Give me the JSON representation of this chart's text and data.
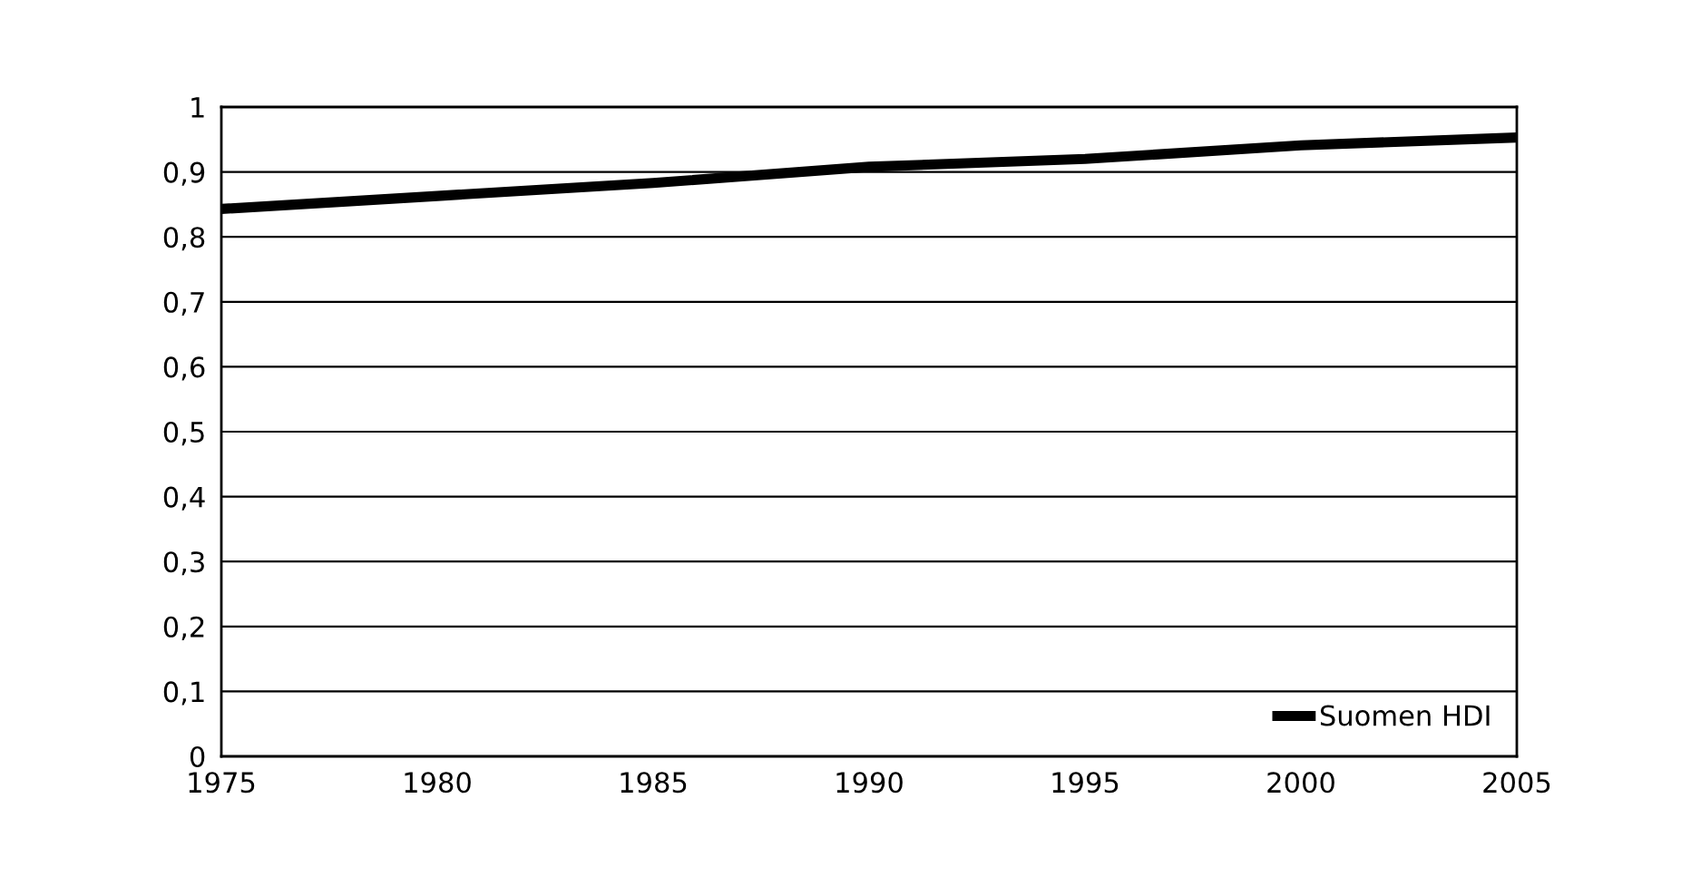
{
  "chart_data": {
    "type": "line",
    "x": [
      1975,
      1980,
      1985,
      1990,
      1995,
      2000,
      2005
    ],
    "series": [
      {
        "name": "Suomen HDI",
        "color": "#000000",
        "values": [
          0.843,
          0.863,
          0.883,
          0.908,
          0.92,
          0.941,
          0.953
        ]
      }
    ],
    "xlim": [
      1975,
      2005
    ],
    "xticks": [
      1975,
      1980,
      1985,
      1990,
      1995,
      2000,
      2005
    ],
    "ylim": [
      0,
      1
    ],
    "yticks": [
      0,
      {
        "value": 0.1,
        "label": "0,1"
      },
      {
        "value": 0.2,
        "label": "0,2"
      },
      {
        "value": 0.3,
        "label": "0,3"
      },
      {
        "value": 0.4,
        "label": "0,4"
      },
      {
        "value": 0.5,
        "label": "0,5"
      },
      {
        "value": 0.6,
        "label": "0,6"
      },
      {
        "value": 0.7,
        "label": "0,7"
      },
      {
        "value": 0.8,
        "label": "0,8"
      },
      {
        "value": 0.9,
        "label": "0,9"
      },
      1
    ],
    "grid": "y",
    "legend": "lower right",
    "marker": "none",
    "line_style": "solid"
  }
}
